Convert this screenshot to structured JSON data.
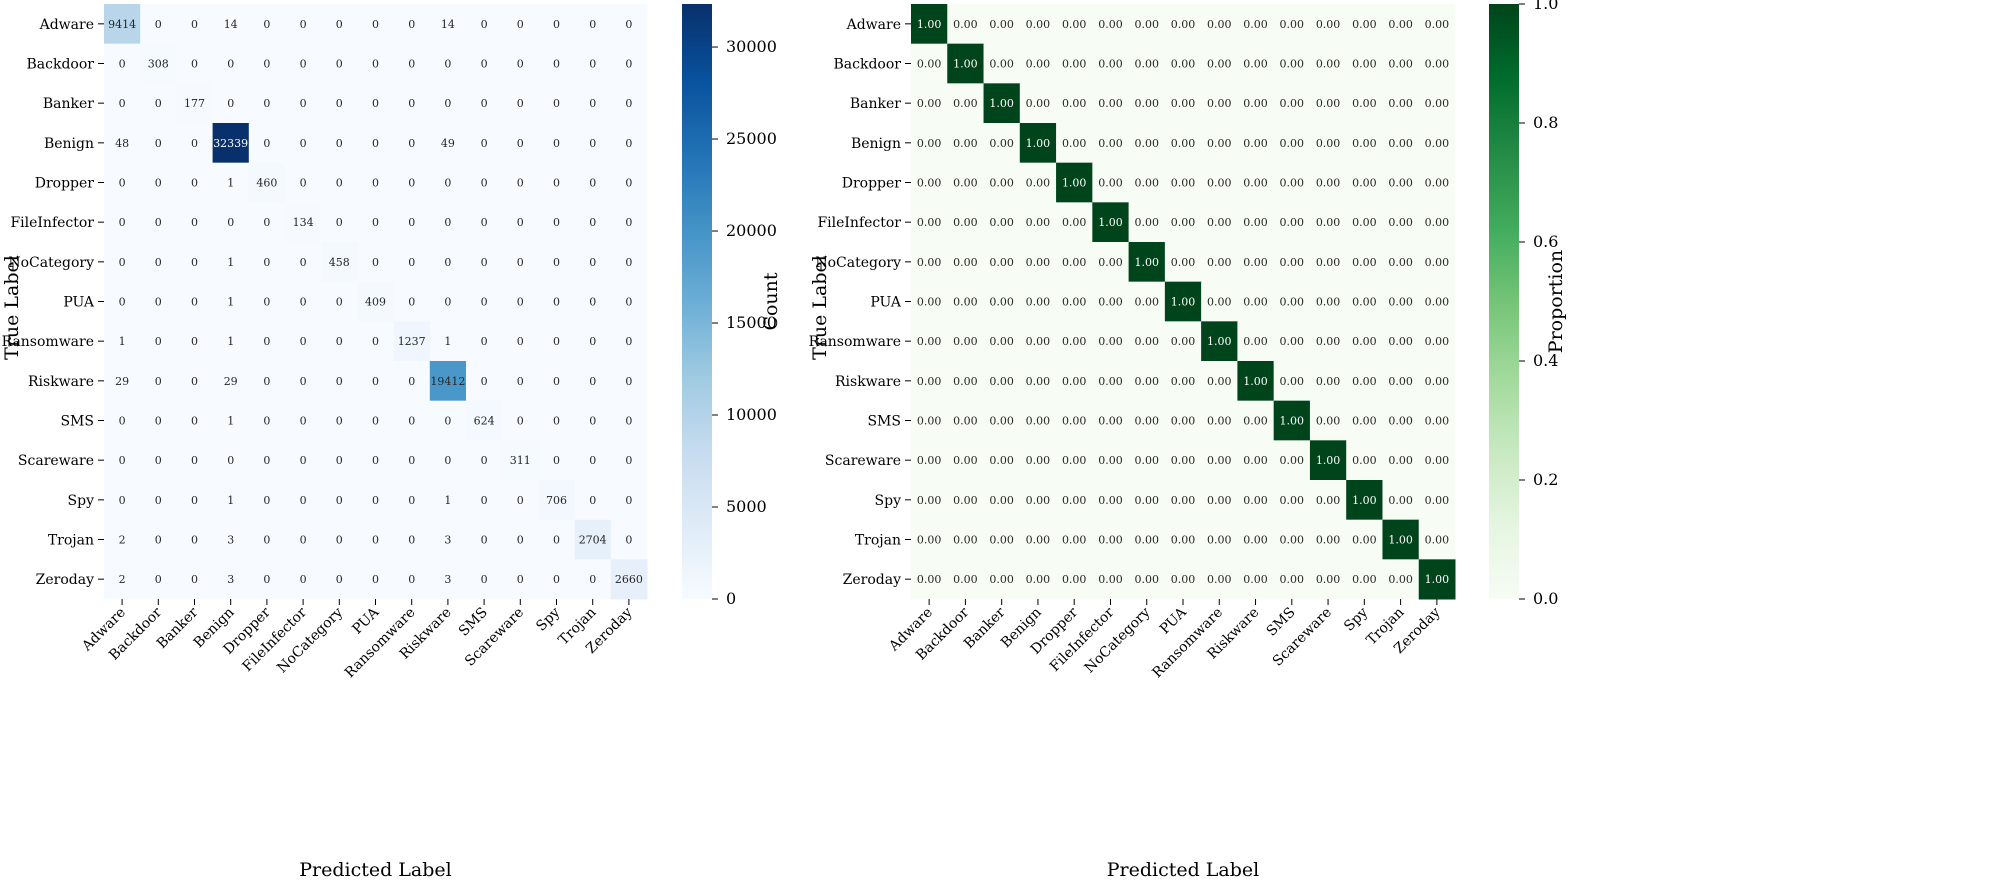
{
  "chart_data": [
    {
      "type": "heatmap",
      "xlabel": "Predicted Label",
      "ylabel": "True Label",
      "categories": [
        "Adware",
        "Backdoor",
        "Banker",
        "Benign",
        "Dropper",
        "FileInfector",
        "NoCategory",
        "PUA",
        "Ransomware",
        "Riskware",
        "SMS",
        "Scareware",
        "Spy",
        "Trojan",
        "Zeroday"
      ],
      "values": [
        [
          9414,
          0,
          0,
          14,
          0,
          0,
          0,
          0,
          0,
          14,
          0,
          0,
          0,
          0,
          0
        ],
        [
          0,
          308,
          0,
          0,
          0,
          0,
          0,
          0,
          0,
          0,
          0,
          0,
          0,
          0,
          0
        ],
        [
          0,
          0,
          177,
          0,
          0,
          0,
          0,
          0,
          0,
          0,
          0,
          0,
          0,
          0,
          0
        ],
        [
          48,
          0,
          0,
          32339,
          0,
          0,
          0,
          0,
          0,
          49,
          0,
          0,
          0,
          0,
          0
        ],
        [
          0,
          0,
          0,
          1,
          460,
          0,
          0,
          0,
          0,
          0,
          0,
          0,
          0,
          0,
          0
        ],
        [
          0,
          0,
          0,
          0,
          0,
          134,
          0,
          0,
          0,
          0,
          0,
          0,
          0,
          0,
          0
        ],
        [
          0,
          0,
          0,
          1,
          0,
          0,
          458,
          0,
          0,
          0,
          0,
          0,
          0,
          0,
          0
        ],
        [
          0,
          0,
          0,
          1,
          0,
          0,
          0,
          409,
          0,
          0,
          0,
          0,
          0,
          0,
          0
        ],
        [
          1,
          0,
          0,
          1,
          0,
          0,
          0,
          0,
          1237,
          1,
          0,
          0,
          0,
          0,
          0
        ],
        [
          29,
          0,
          0,
          29,
          0,
          0,
          0,
          0,
          0,
          19412,
          0,
          0,
          0,
          0,
          0
        ],
        [
          0,
          0,
          0,
          1,
          0,
          0,
          0,
          0,
          0,
          0,
          624,
          0,
          0,
          0,
          0
        ],
        [
          0,
          0,
          0,
          0,
          0,
          0,
          0,
          0,
          0,
          0,
          0,
          311,
          0,
          0,
          0
        ],
        [
          0,
          0,
          0,
          1,
          0,
          0,
          0,
          0,
          0,
          1,
          0,
          0,
          706,
          0,
          0
        ],
        [
          2,
          0,
          0,
          3,
          0,
          0,
          0,
          0,
          0,
          3,
          0,
          0,
          0,
          2704,
          0
        ],
        [
          2,
          0,
          0,
          3,
          0,
          0,
          0,
          0,
          0,
          3,
          0,
          0,
          0,
          0,
          2660
        ]
      ],
      "value_format": "int",
      "colormap": "Blues",
      "color_low": "#f7fbff",
      "color_high": "#08306b",
      "vmin": 0,
      "vmax": 32339,
      "colorbar_label": "Count",
      "colorbar_ticks": [
        0,
        5000,
        10000,
        15000,
        20000,
        25000,
        30000
      ]
    },
    {
      "type": "heatmap",
      "xlabel": "Predicted Label",
      "ylabel": "True Label",
      "categories": [
        "Adware",
        "Backdoor",
        "Banker",
        "Benign",
        "Dropper",
        "FileInfector",
        "NoCategory",
        "PUA",
        "Ransomware",
        "Riskware",
        "SMS",
        "Scareware",
        "Spy",
        "Trojan",
        "Zeroday"
      ],
      "values": [
        [
          1,
          0,
          0,
          0,
          0,
          0,
          0,
          0,
          0,
          0,
          0,
          0,
          0,
          0,
          0
        ],
        [
          0,
          1,
          0,
          0,
          0,
          0,
          0,
          0,
          0,
          0,
          0,
          0,
          0,
          0,
          0
        ],
        [
          0,
          0,
          1,
          0,
          0,
          0,
          0,
          0,
          0,
          0,
          0,
          0,
          0,
          0,
          0
        ],
        [
          0,
          0,
          0,
          1,
          0,
          0,
          0,
          0,
          0,
          0,
          0,
          0,
          0,
          0,
          0
        ],
        [
          0,
          0,
          0,
          0,
          1,
          0,
          0,
          0,
          0,
          0,
          0,
          0,
          0,
          0,
          0
        ],
        [
          0,
          0,
          0,
          0,
          0,
          1,
          0,
          0,
          0,
          0,
          0,
          0,
          0,
          0,
          0
        ],
        [
          0,
          0,
          0,
          0,
          0,
          0,
          1,
          0,
          0,
          0,
          0,
          0,
          0,
          0,
          0
        ],
        [
          0,
          0,
          0,
          0,
          0,
          0,
          0,
          1,
          0,
          0,
          0,
          0,
          0,
          0,
          0
        ],
        [
          0,
          0,
          0,
          0,
          0,
          0,
          0,
          0,
          1,
          0,
          0,
          0,
          0,
          0,
          0
        ],
        [
          0,
          0,
          0,
          0,
          0,
          0,
          0,
          0,
          0,
          1,
          0,
          0,
          0,
          0,
          0
        ],
        [
          0,
          0,
          0,
          0,
          0,
          0,
          0,
          0,
          0,
          0,
          1,
          0,
          0,
          0,
          0
        ],
        [
          0,
          0,
          0,
          0,
          0,
          0,
          0,
          0,
          0,
          0,
          0,
          1,
          0,
          0,
          0
        ],
        [
          0,
          0,
          0,
          0,
          0,
          0,
          0,
          0,
          0,
          0,
          0,
          0,
          1,
          0,
          0
        ],
        [
          0,
          0,
          0,
          0,
          0,
          0,
          0,
          0,
          0,
          0,
          0,
          0,
          0,
          1,
          0
        ],
        [
          0,
          0,
          0,
          0,
          0,
          0,
          0,
          0,
          0,
          0,
          0,
          0,
          0,
          0,
          1
        ]
      ],
      "value_format": "fixed2",
      "colormap": "Greens",
      "color_low": "#f7fcf5",
      "color_high": "#00441b",
      "vmin": 0,
      "vmax": 1,
      "colorbar_label": "Proportion",
      "colorbar_ticks": [
        0.0,
        0.2,
        0.4,
        0.6,
        0.8,
        1.0
      ]
    }
  ]
}
